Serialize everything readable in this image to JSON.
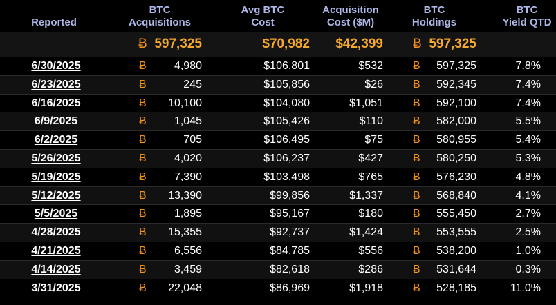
{
  "colors": {
    "header_text": "#aeb7e6",
    "btc_orange": "#f7931a",
    "summary_text": "#f7a92e",
    "background": "#000000"
  },
  "btc_symbol": "Ƀ",
  "headers": {
    "reported": "Reported",
    "btc_acq_1": "BTC",
    "btc_acq_2": "Acquisitions",
    "avg_cost_1": "Avg BTC",
    "avg_cost_2": "Cost",
    "acq_cost_1": "Acquisition",
    "acq_cost_2": "Cost ($M)",
    "holdings_1": "BTC",
    "holdings_2": "Holdings",
    "yield_1": "BTC",
    "yield_2": "Yield QTD"
  },
  "summary": {
    "acquisitions": "597,325",
    "avg_cost": "$70,982",
    "acq_cost": "$42,399",
    "holdings": "597,325"
  },
  "rows": [
    {
      "date": "6/30/2025",
      "acq": "4,980",
      "avg": "$106,801",
      "cost": "$532",
      "hold": "597,325",
      "yield": "7.8%"
    },
    {
      "date": "6/23/2025",
      "acq": "245",
      "avg": "$105,856",
      "cost": "$26",
      "hold": "592,345",
      "yield": "7.4%"
    },
    {
      "date": "6/16/2025",
      "acq": "10,100",
      "avg": "$104,080",
      "cost": "$1,051",
      "hold": "592,100",
      "yield": "7.4%"
    },
    {
      "date": "6/9/2025",
      "acq": "1,045",
      "avg": "$105,426",
      "cost": "$110",
      "hold": "582,000",
      "yield": "5.5%"
    },
    {
      "date": "6/2/2025",
      "acq": "705",
      "avg": "$106,495",
      "cost": "$75",
      "hold": "580,955",
      "yield": "5.4%"
    },
    {
      "date": "5/26/2025",
      "acq": "4,020",
      "avg": "$106,237",
      "cost": "$427",
      "hold": "580,250",
      "yield": "5.3%"
    },
    {
      "date": "5/19/2025",
      "acq": "7,390",
      "avg": "$103,498",
      "cost": "$765",
      "hold": "576,230",
      "yield": "4.8%"
    },
    {
      "date": "5/12/2025",
      "acq": "13,390",
      "avg": "$99,856",
      "cost": "$1,337",
      "hold": "568,840",
      "yield": "4.1%"
    },
    {
      "date": "5/5/2025",
      "acq": "1,895",
      "avg": "$95,167",
      "cost": "$180",
      "hold": "555,450",
      "yield": "2.7%"
    },
    {
      "date": "4/28/2025",
      "acq": "15,355",
      "avg": "$92,737",
      "cost": "$1,424",
      "hold": "553,555",
      "yield": "2.5%"
    },
    {
      "date": "4/21/2025",
      "acq": "6,556",
      "avg": "$84,785",
      "cost": "$556",
      "hold": "538,200",
      "yield": "1.0%"
    },
    {
      "date": "4/14/2025",
      "acq": "3,459",
      "avg": "$82,618",
      "cost": "$286",
      "hold": "531,644",
      "yield": "0.3%"
    },
    {
      "date": "3/31/2025",
      "acq": "22,048",
      "avg": "$86,969",
      "cost": "$1,918",
      "hold": "528,185",
      "yield": "11.0%"
    }
  ]
}
